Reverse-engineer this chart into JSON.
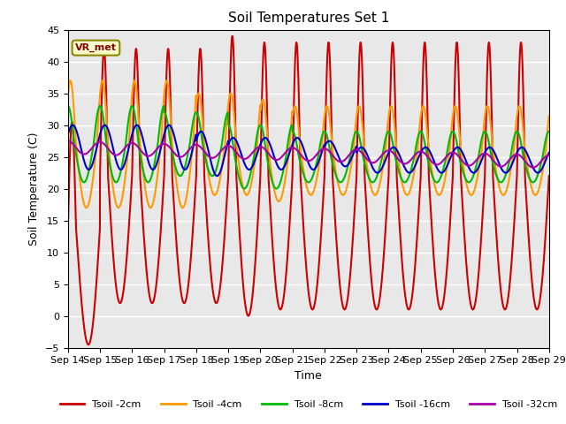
{
  "title": "Soil Temperatures Set 1",
  "xlabel": "Time",
  "ylabel": "Soil Temperature (C)",
  "ylim": [
    -5,
    45
  ],
  "bg_color": "#e8e8e8",
  "fig_color": "#ffffff",
  "grid_color": "#ffffff",
  "annotation": "VR_met",
  "legend_labels": [
    "Tsoil -2cm",
    "Tsoil -4cm",
    "Tsoil -8cm",
    "Tsoil -16cm",
    "Tsoil -32cm"
  ],
  "line_colors": [
    "#cc0000",
    "#ff9900",
    "#00bb00",
    "#0000cc",
    "#aa00aa"
  ],
  "xtick_labels": [
    "Sep 14",
    "Sep 15",
    "Sep 16",
    "Sep 17",
    "Sep 18",
    "Sep 19",
    "Sep 20",
    "Sep 21",
    "Sep 22",
    "Sep 23",
    "Sep 24",
    "Sep 25",
    "Sep 26",
    "Sep 27",
    "Sep 28",
    "Sep 29"
  ]
}
